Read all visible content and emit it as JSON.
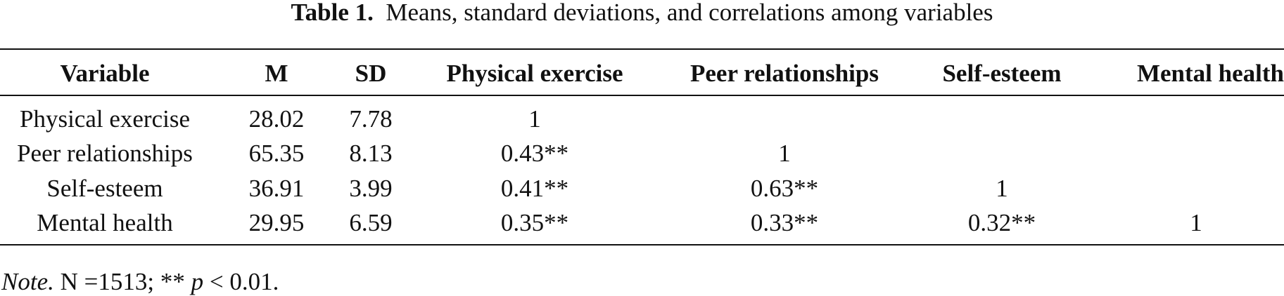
{
  "caption": {
    "label": "Table 1.",
    "text": "Means, standard deviations, and correlations among variables"
  },
  "table": {
    "header": [
      "Variable",
      "M",
      "SD",
      "Physical exercise",
      "Peer relationships",
      "Self-esteem",
      "Mental health"
    ],
    "rows": [
      [
        "Physical exercise",
        "28.02",
        "7.78",
        "1"
      ],
      [
        "Peer relationships",
        "65.35",
        "8.13",
        "0.43**",
        "1"
      ],
      [
        "Self-esteem",
        "36.91",
        "3.99",
        "0.41**",
        "0.63**",
        "1"
      ],
      [
        "Mental health",
        "29.95",
        "6.59",
        "0.35**",
        "0.33**",
        "0.32**",
        "1"
      ]
    ]
  },
  "note": {
    "label": "Note.",
    "text_before": "N =1513; ** ",
    "symbol": "p",
    "text_after": " < 0.01."
  }
}
